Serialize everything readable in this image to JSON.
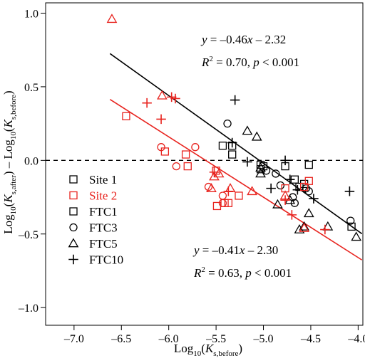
{
  "chart_data": {
    "type": "scatter",
    "xlabel": {
      "pre": "Log",
      "pre_sub": "10",
      "open": "(",
      "var": "K",
      "sub": "s,before",
      "close": ")"
    },
    "ylabel": {
      "left": {
        "pre": "Log",
        "pre_sub": "10",
        "open": "(",
        "var": "K",
        "sub": "s,after",
        "close": ")"
      },
      "minus": " – ",
      "right": {
        "pre": "Log",
        "pre_sub": "10",
        "open": "(",
        "var": "K",
        "sub": "s,before",
        "close": ")"
      }
    },
    "xlim": [
      -7.3,
      -3.95
    ],
    "ylim": [
      -1.12,
      1.07
    ],
    "x_ticks": [
      -7.0,
      -6.5,
      -6.0,
      -5.5,
      -5.0,
      -4.5,
      -4.0
    ],
    "x_tick_labels": [
      "–7.0",
      "–6.5",
      "–6.0",
      "–5.5",
      "–5.0",
      "–4.5",
      "–4.0"
    ],
    "y_ticks": [
      1.0,
      0.5,
      0.0,
      -0.5,
      -1.0
    ],
    "y_tick_labels": [
      "1.0",
      "0.5",
      "0.0",
      "–0.5",
      "–1.0"
    ],
    "zero_line": {
      "y": 0,
      "style": "dashed"
    },
    "colors": {
      "site1": "#000000",
      "site2": "#e8231e"
    },
    "regressions": [
      {
        "site": "site1",
        "slope": -0.46,
        "intercept": -2.32,
        "x_range": [
          -6.62,
          -3.96
        ],
        "equation": {
          "y": "y",
          "eq": " = –0.46",
          "x": "x",
          "rest": " – 2.32"
        },
        "stats": {
          "r": "R",
          "r_exp": "2",
          "r_val": " = 0.70, ",
          "p": "p",
          "p_rest": " < 0.001"
        }
      },
      {
        "site": "site2",
        "slope": -0.41,
        "intercept": -2.3,
        "x_range": [
          -6.62,
          -3.96
        ],
        "equation": {
          "y": "y",
          "eq": " = –0.41",
          "x": "x",
          "rest": " – 2.30"
        },
        "stats": {
          "r": "R",
          "r_exp": "2",
          "r_val": " = 0.63, ",
          "p": "p",
          "p_rest": " < 0.001"
        }
      }
    ],
    "legend": {
      "placement": "middle-left",
      "items": [
        {
          "label": "Site 1",
          "marker": "square",
          "color": "#000000"
        },
        {
          "label": "Site 2",
          "marker": "square",
          "color": "#e8231e"
        },
        {
          "label": "FTC1",
          "marker": "square",
          "color": "#000000"
        },
        {
          "label": "FTC3",
          "marker": "circle",
          "color": "#000000"
        },
        {
          "label": "FTC5",
          "marker": "triangle",
          "color": "#000000"
        },
        {
          "label": "FTC10",
          "marker": "plus",
          "color": "#000000"
        }
      ]
    },
    "series": [
      {
        "site": "site1",
        "marker": "square",
        "points": [
          [
            -5.43,
            0.1
          ],
          [
            -5.33,
            0.1
          ],
          [
            -5.33,
            0.04
          ],
          [
            -5.03,
            -0.03
          ],
          [
            -5.03,
            -0.06
          ],
          [
            -5.0,
            -0.04
          ],
          [
            -4.77,
            -0.04
          ],
          [
            -4.67,
            -0.13
          ],
          [
            -4.62,
            -0.18
          ],
          [
            -4.57,
            -0.16
          ],
          [
            -4.52,
            -0.03
          ],
          [
            -4.07,
            -0.45
          ]
        ]
      },
      {
        "site": "site1",
        "marker": "circle",
        "points": [
          [
            -5.38,
            0.25
          ],
          [
            -4.97,
            -0.07
          ],
          [
            -4.87,
            -0.09
          ],
          [
            -4.82,
            -0.17
          ],
          [
            -4.69,
            -0.25
          ],
          [
            -4.67,
            -0.29
          ],
          [
            -4.55,
            -0.19
          ],
          [
            -4.52,
            -0.21
          ],
          [
            -4.08,
            -0.41
          ]
        ]
      },
      {
        "site": "site1",
        "marker": "triangle",
        "points": [
          [
            -5.17,
            0.2
          ],
          [
            -5.07,
            0.16
          ],
          [
            -5.03,
            -0.09
          ],
          [
            -5.03,
            -0.05
          ],
          [
            -4.85,
            -0.3
          ],
          [
            -4.72,
            -0.27
          ],
          [
            -4.62,
            -0.47
          ],
          [
            -4.57,
            -0.45
          ],
          [
            -4.52,
            -0.36
          ],
          [
            -4.32,
            -0.45
          ],
          [
            -4.02,
            -0.52
          ]
        ]
      },
      {
        "site": "site1",
        "marker": "plus",
        "points": [
          [
            -5.3,
            0.41
          ],
          [
            -5.33,
            0.12
          ],
          [
            -5.17,
            -0.01
          ],
          [
            -4.92,
            -0.19
          ],
          [
            -4.77,
            0.0
          ],
          [
            -4.72,
            -0.13
          ],
          [
            -4.64,
            -0.2
          ],
          [
            -4.47,
            -0.26
          ],
          [
            -4.09,
            -0.21
          ]
        ]
      },
      {
        "site": "site2",
        "marker": "square",
        "points": [
          [
            -6.45,
            0.3
          ],
          [
            -6.04,
            0.06
          ],
          [
            -5.82,
            0.04
          ],
          [
            -5.8,
            -0.04
          ],
          [
            -5.5,
            -0.07
          ],
          [
            -5.49,
            -0.31
          ],
          [
            -5.41,
            -0.29
          ],
          [
            -5.37,
            -0.29
          ],
          [
            -5.26,
            -0.24
          ],
          [
            -4.77,
            -0.19
          ],
          [
            -4.57,
            -0.18
          ],
          [
            -4.52,
            -0.14
          ]
        ]
      },
      {
        "site": "site2",
        "marker": "circle",
        "points": [
          [
            -6.08,
            0.09
          ],
          [
            -5.92,
            -0.04
          ],
          [
            -5.72,
            0.09
          ],
          [
            -5.58,
            -0.18
          ],
          [
            -5.43,
            -0.24
          ],
          [
            -5.43,
            -0.29
          ]
        ]
      },
      {
        "site": "site2",
        "marker": "triangle",
        "points": [
          [
            -6.6,
            0.96
          ],
          [
            -6.07,
            0.44
          ],
          [
            -5.55,
            -0.19
          ],
          [
            -5.52,
            -0.11
          ],
          [
            -5.47,
            -0.09
          ],
          [
            -5.35,
            -0.19
          ],
          [
            -5.12,
            -0.21
          ],
          [
            -4.77,
            -0.24
          ],
          [
            -4.57,
            -0.46
          ]
        ]
      },
      {
        "site": "site2",
        "marker": "plus",
        "points": [
          [
            -6.23,
            0.39
          ],
          [
            -6.08,
            0.28
          ],
          [
            -5.97,
            0.43
          ],
          [
            -5.93,
            0.42
          ],
          [
            -5.52,
            -0.08
          ],
          [
            -5.37,
            -0.21
          ],
          [
            -4.77,
            -0.27
          ],
          [
            -4.7,
            -0.37
          ],
          [
            -4.35,
            -0.47
          ]
        ]
      }
    ]
  }
}
